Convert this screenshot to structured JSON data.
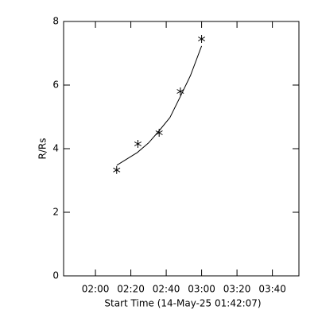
{
  "chart_data": {
    "type": "scatter",
    "xlabel": "Start Time (14-May-25 01:42:07)",
    "ylabel": "R/Rs",
    "xlim": [
      102,
      235
    ],
    "xticks": [
      {
        "value": 120,
        "label": "02:00"
      },
      {
        "value": 140,
        "label": "02:20"
      },
      {
        "value": 160,
        "label": "02:40"
      },
      {
        "value": 180,
        "label": "03:00"
      },
      {
        "value": 200,
        "label": "03:20"
      },
      {
        "value": 220,
        "label": "03:40"
      }
    ],
    "ylim": [
      0,
      8
    ],
    "yticks": [
      0,
      2,
      4,
      6,
      8
    ],
    "series": [
      {
        "marker": "asterisk",
        "color": "#000000",
        "x": [
          132,
          144,
          156,
          168,
          180
        ],
        "values": [
          3.33,
          4.15,
          4.5,
          5.8,
          7.45
        ]
      },
      {
        "marker": "line",
        "color": "#000000",
        "x": [
          132.1,
          137.9,
          143.7,
          150,
          155.8,
          162.1,
          167.9,
          173.7,
          180
        ],
        "values": [
          3.48,
          3.68,
          3.88,
          4.18,
          4.55,
          4.98,
          5.63,
          6.3,
          7.23
        ]
      }
    ]
  }
}
